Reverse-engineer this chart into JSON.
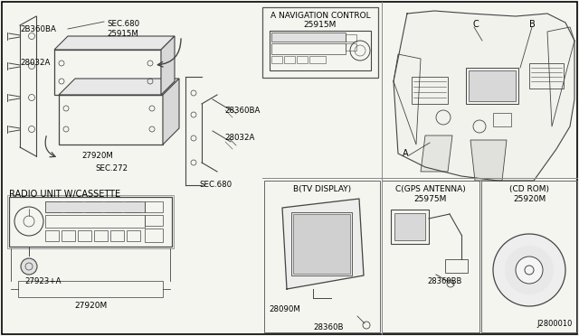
{
  "background_color": "#f5f5f0",
  "line_color": "#444444",
  "labels": {
    "nav_control_title": "A NAVIGATION CONTROL",
    "nav_control_part": "25915M",
    "radio_unit_title": "RADIO UNIT W/CASSETTE",
    "radio_knob_part": "27923+A",
    "radio_unit_part2": "27920M",
    "sec680_top": "SEC.680",
    "sec272": "SEC.272",
    "sec680_bot": "SEC.680",
    "part_25915M": "25915M",
    "part_2B360BA": "2B360BA",
    "part_28032A_l": "28032A",
    "part_27920M": "27920M",
    "part_28360BA": "28360BA",
    "part_28032A_r": "28032A",
    "label_A": "A",
    "label_B": "B",
    "label_C": "C",
    "tv_display_title": "B(TV DISPLAY)",
    "part_28090M": "28090M",
    "part_28360B": "28360B",
    "gps_title": "C(GPS ANTENNA)",
    "part_25975M": "25975M",
    "part_28360BB": "28360BB",
    "cd_rom_title": "(CD ROM)",
    "part_25920M": "25920M",
    "diagram_num": "J2800010"
  }
}
